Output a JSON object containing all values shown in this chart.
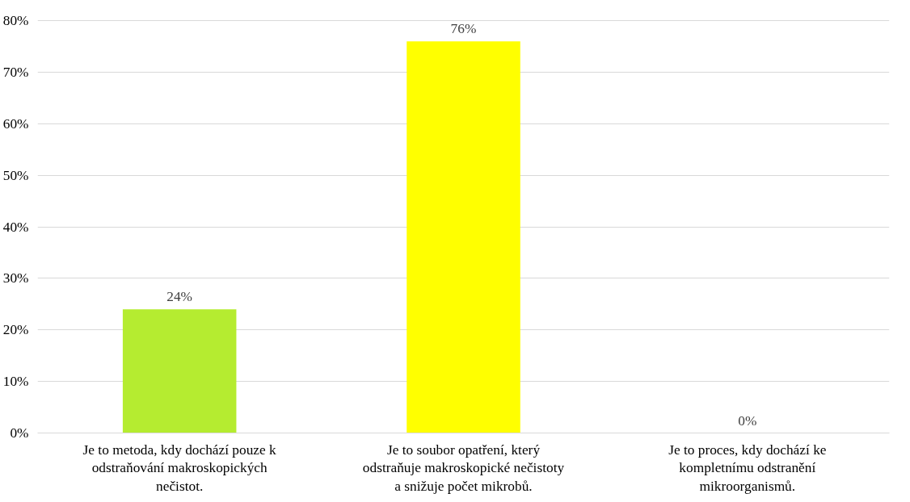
{
  "chart_data": {
    "type": "bar",
    "categories": [
      "Je to metoda, kdy dochází pouze k odstraňování makroskopických nečistot.",
      "Je to soubor opatření, který odstraňuje makroskopické nečistoty a snižuje počet mikrobů.",
      "Je to proces, kdy dochází ke kompletnímu odstranění mikroorganismů."
    ],
    "values": [
      24,
      76,
      0
    ],
    "colors": [
      "#b5ec30",
      "#ffff00",
      "#a5a5a5"
    ],
    "value_labels": [
      "24%",
      "76%",
      "0%"
    ],
    "ylim": [
      0,
      80
    ],
    "yticks": [
      {
        "value": 0,
        "label": "0%"
      },
      {
        "value": 10,
        "label": "10%"
      },
      {
        "value": 20,
        "label": "20%"
      },
      {
        "value": 30,
        "label": "30%"
      },
      {
        "value": 40,
        "label": "40%"
      },
      {
        "value": 50,
        "label": "50%"
      },
      {
        "value": 60,
        "label": "60%"
      },
      {
        "value": 70,
        "label": "70%"
      },
      {
        "value": 80,
        "label": "80%"
      }
    ],
    "grid": "y"
  }
}
